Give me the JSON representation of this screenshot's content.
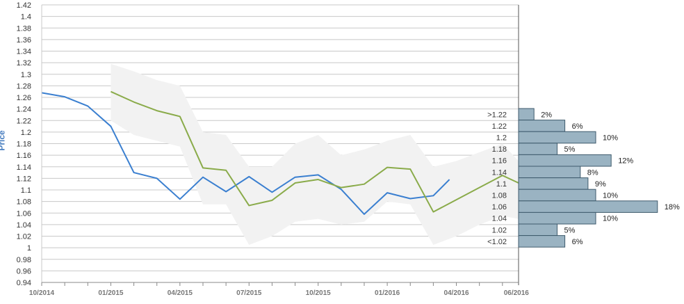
{
  "chart_data": {
    "type": "line",
    "ylabel": "Price",
    "ylim": [
      0.94,
      1.42
    ],
    "y_ticks": [
      "0.94",
      "0.96",
      "0.98",
      "1",
      "1.02",
      "1.04",
      "1.06",
      "1.08",
      "1.1",
      "1.12",
      "1.14",
      "1.16",
      "1.18",
      "1.2",
      "1.22",
      "1.24",
      "1.26",
      "1.28",
      "1.3",
      "1.32",
      "1.34",
      "1.36",
      "1.38",
      "1.4",
      "1.42"
    ],
    "x_ticks": [
      "10/2014",
      "01/2015",
      "04/2015",
      "07/2015",
      "10/2015",
      "01/2016",
      "04/2016",
      "06/2016"
    ],
    "x_month_range": [
      0,
      20.7
    ],
    "grid": true,
    "series": [
      {
        "color": "#3a7fd0",
        "points": [
          [
            0,
            1.268
          ],
          [
            1,
            1.261
          ],
          [
            2,
            1.245
          ],
          [
            3,
            1.21
          ],
          [
            4,
            1.13
          ],
          [
            5,
            1.12
          ],
          [
            6,
            1.084
          ],
          [
            7,
            1.122
          ],
          [
            8,
            1.097
          ],
          [
            9,
            1.123
          ],
          [
            10,
            1.096
          ],
          [
            11,
            1.122
          ],
          [
            12,
            1.126
          ],
          [
            13,
            1.101
          ],
          [
            14,
            1.058
          ],
          [
            15,
            1.095
          ],
          [
            16,
            1.085
          ],
          [
            17,
            1.09
          ],
          [
            17.7,
            1.118
          ]
        ]
      },
      {
        "color": "#8aab4a",
        "points": [
          [
            3,
            1.27
          ],
          [
            4,
            1.252
          ],
          [
            5,
            1.237
          ],
          [
            6,
            1.227
          ],
          [
            7,
            1.138
          ],
          [
            8,
            1.134
          ],
          [
            9,
            1.073
          ],
          [
            10,
            1.082
          ],
          [
            11,
            1.112
          ],
          [
            12,
            1.118
          ],
          [
            13,
            1.104
          ],
          [
            14,
            1.11
          ],
          [
            15,
            1.139
          ],
          [
            16,
            1.136
          ],
          [
            17,
            1.062
          ],
          [
            18,
            1.083
          ],
          [
            19,
            1.104
          ],
          [
            20,
            1.125
          ],
          [
            20.7,
            1.112
          ]
        ]
      }
    ],
    "band": {
      "color": "#f2f2f2",
      "upper": [
        [
          3,
          1.318
        ],
        [
          4,
          1.305
        ],
        [
          5,
          1.29
        ],
        [
          6,
          1.28
        ],
        [
          7,
          1.2
        ],
        [
          8,
          1.195
        ],
        [
          9,
          1.14
        ],
        [
          10,
          1.14
        ],
        [
          11,
          1.18
        ],
        [
          12,
          1.195
        ],
        [
          13,
          1.16
        ],
        [
          14,
          1.17
        ],
        [
          15,
          1.185
        ],
        [
          16,
          1.195
        ],
        [
          17,
          1.14
        ],
        [
          18,
          1.15
        ],
        [
          19,
          1.165
        ],
        [
          20,
          1.18
        ],
        [
          20.7,
          1.15
        ]
      ],
      "lower": [
        [
          3,
          1.22
        ],
        [
          4,
          1.195
        ],
        [
          5,
          1.185
        ],
        [
          6,
          1.175
        ],
        [
          7,
          1.075
        ],
        [
          8,
          1.075
        ],
        [
          9,
          1.005
        ],
        [
          10,
          1.02
        ],
        [
          11,
          1.045
        ],
        [
          12,
          1.05
        ],
        [
          13,
          1.04
        ],
        [
          14,
          1.045
        ],
        [
          15,
          1.08
        ],
        [
          16,
          1.075
        ],
        [
          17,
          1.005
        ],
        [
          18,
          1.02
        ],
        [
          19,
          1.04
        ],
        [
          20,
          1.055
        ],
        [
          20.7,
          1.05
        ]
      ]
    },
    "distribution": {
      "color": "#9ab3c2",
      "bins": [
        {
          "label": ">1.22",
          "pct": 2,
          "text": "2%"
        },
        {
          "label": "1.22",
          "pct": 6,
          "text": "6%"
        },
        {
          "label": "1.2",
          "pct": 10,
          "text": "10%"
        },
        {
          "label": "1.18",
          "pct": 5,
          "text": "5%"
        },
        {
          "label": "1.16",
          "pct": 12,
          "text": "12%"
        },
        {
          "label": "1.14",
          "pct": 8,
          "text": "8%"
        },
        {
          "label": "1.1",
          "pct": 9,
          "text": "9%"
        },
        {
          "label": "1.08",
          "pct": 10,
          "text": "10%"
        },
        {
          "label": "1.06",
          "pct": 18,
          "text": "18%"
        },
        {
          "label": "1.04",
          "pct": 10,
          "text": "10%"
        },
        {
          "label": "1.02",
          "pct": 5,
          "text": "5%"
        },
        {
          "label": "<1.02",
          "pct": 6,
          "text": "6%"
        }
      ]
    }
  }
}
